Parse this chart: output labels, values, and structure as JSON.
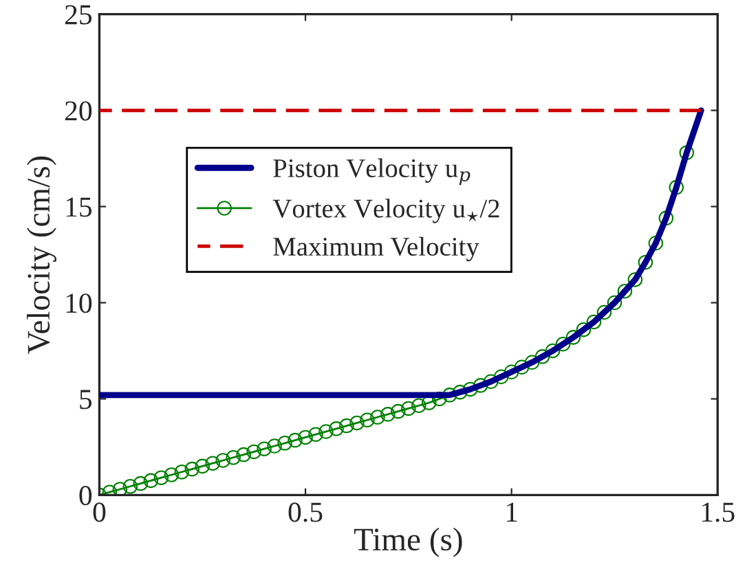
{
  "chart_data": {
    "type": "line",
    "xlabel": "Time (s)",
    "ylabel": "Velocity (cm/s)",
    "xlim": [
      0,
      1.5
    ],
    "ylim": [
      0,
      25
    ],
    "xticks": [
      0,
      0.5,
      1,
      1.5
    ],
    "yticks": [
      0,
      5,
      10,
      15,
      20,
      25
    ],
    "grid": false,
    "legend": "top left",
    "series": [
      {
        "name": "Piston Velocity u$_{p}$",
        "color": "#00008b",
        "line_style": "solid",
        "marker": "none",
        "x": [
          0,
          0.83,
          0.85,
          0.875,
          0.9,
          0.925,
          0.95,
          0.975,
          1.0,
          1.025,
          1.05,
          1.075,
          1.1,
          1.125,
          1.15,
          1.175,
          1.2,
          1.225,
          1.25,
          1.275,
          1.3,
          1.325,
          1.35,
          1.375,
          1.4,
          1.425,
          1.46
        ],
        "values": [
          5.2,
          5.2,
          5.2,
          5.35,
          5.5,
          5.7,
          5.9,
          6.15,
          6.4,
          6.65,
          6.9,
          7.2,
          7.5,
          7.85,
          8.2,
          8.6,
          9.0,
          9.5,
          10.0,
          10.6,
          11.2,
          12.1,
          13.1,
          14.4,
          16.0,
          17.8,
          20
        ]
      },
      {
        "name": "Vortex Velocity u$_{⋆}$/2",
        "color": "#008000",
        "line_style": "solid",
        "marker": "circle",
        "x": [
          0,
          0.025,
          0.05,
          0.075,
          0.1,
          0.125,
          0.15,
          0.175,
          0.2,
          0.225,
          0.25,
          0.275,
          0.3,
          0.325,
          0.35,
          0.375,
          0.4,
          0.425,
          0.45,
          0.475,
          0.5,
          0.525,
          0.55,
          0.575,
          0.6,
          0.625,
          0.65,
          0.675,
          0.7,
          0.725,
          0.75,
          0.775,
          0.8,
          0.825,
          0.85,
          0.875,
          0.9,
          0.925,
          0.95,
          0.975,
          1.0,
          1.025,
          1.05,
          1.075,
          1.1,
          1.125,
          1.15,
          1.175,
          1.2,
          1.225,
          1.25,
          1.275,
          1.3,
          1.325,
          1.35,
          1.375,
          1.4,
          1.425
        ],
        "values": [
          0,
          0.15,
          0.3,
          0.45,
          0.6,
          0.75,
          0.9,
          1.05,
          1.2,
          1.35,
          1.5,
          1.65,
          1.8,
          1.95,
          2.1,
          2.25,
          2.4,
          2.55,
          2.7,
          2.85,
          3.0,
          3.15,
          3.3,
          3.45,
          3.6,
          3.75,
          3.9,
          4.05,
          4.2,
          4.35,
          4.5,
          4.65,
          4.8,
          5.0,
          5.2,
          5.35,
          5.5,
          5.7,
          5.9,
          6.15,
          6.4,
          6.65,
          6.9,
          7.2,
          7.5,
          7.85,
          8.2,
          8.6,
          9.0,
          9.5,
          10.0,
          10.6,
          11.2,
          12.1,
          13.1,
          14.4,
          16.0,
          17.8
        ]
      },
      {
        "name": "Maximum Velocity",
        "color": "#cc0000",
        "line_style": "dashed",
        "marker": "none",
        "x": [
          0,
          1.46
        ],
        "values": [
          20,
          20
        ]
      }
    ]
  }
}
